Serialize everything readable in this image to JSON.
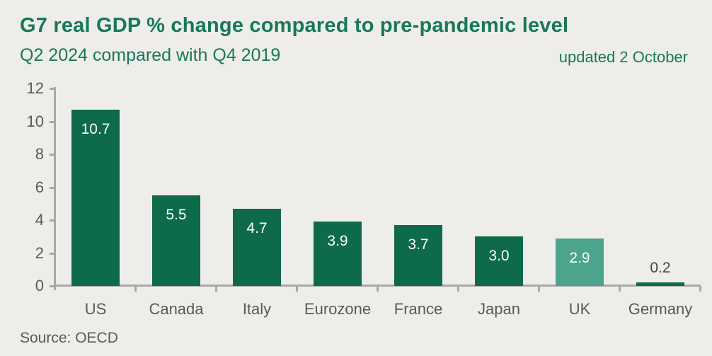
{
  "header": {
    "title": "G7 real GDP % change compared to pre-pandemic level",
    "subtitle": "Q2 2024 compared with Q4 2019",
    "updated": "updated 2 October"
  },
  "footer": {
    "source": "Source: OECD"
  },
  "colors": {
    "background": "#efedea",
    "heading_green": "#17795a",
    "bar_green": "#0d6b4b",
    "bar_teal_highlight": "#4ba48b",
    "axis_gray": "#a8a8a8",
    "tick_label_gray": "#595959",
    "value_label_inside": "#ffffff",
    "value_label_outside": "#454545"
  },
  "chart_data": {
    "type": "bar",
    "title": "G7 real GDP % change compared to pre-pandemic level",
    "subtitle": "Q2 2024 compared with Q4 2019",
    "updated": "updated 2 October",
    "source": "Source: OECD",
    "categories": [
      "US",
      "Canada",
      "Italy",
      "Eurozone",
      "France",
      "Japan",
      "UK",
      "Germany"
    ],
    "values": [
      10.7,
      5.5,
      4.7,
      3.9,
      3.7,
      3.0,
      2.9,
      0.2
    ],
    "value_labels": [
      "10.7",
      "5.5",
      "4.7",
      "3.9",
      "3.7",
      "3.0",
      "2.9",
      "0.2"
    ],
    "bar_colors": [
      "#0d6b4b",
      "#0d6b4b",
      "#0d6b4b",
      "#0d6b4b",
      "#0d6b4b",
      "#0d6b4b",
      "#4ba48b",
      "#0d6b4b"
    ],
    "highlighted_category": "UK",
    "xlabel": "",
    "ylabel": "",
    "ylim": [
      0,
      12
    ],
    "yticks": [
      0,
      2,
      4,
      6,
      8,
      10,
      12
    ],
    "grid": false,
    "legend": false
  }
}
